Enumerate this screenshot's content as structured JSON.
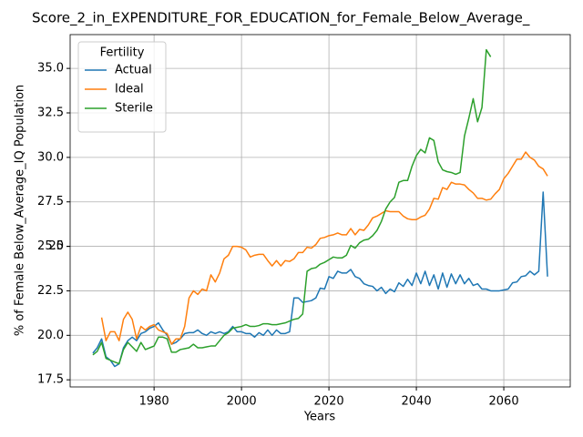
{
  "chart_data": {
    "type": "line",
    "title": "Score_2_in_EXPENDITURE_FOR_EDUCATION_for_Female_Below_Average_",
    "x_label": "Years",
    "y_label": "% of Female Below_Average_IQ Population",
    "legend_title": "Fertility",
    "legend_position": "upper-left",
    "grid": true,
    "x": [
      1966,
      1967,
      1968,
      1969,
      1970,
      1971,
      1972,
      1973,
      1974,
      1975,
      1976,
      1977,
      1978,
      1979,
      1980,
      1981,
      1982,
      1983,
      1984,
      1985,
      1986,
      1987,
      1988,
      1989,
      1990,
      1991,
      1992,
      1993,
      1994,
      1995,
      1996,
      1997,
      1998,
      1999,
      2000,
      2001,
      2002,
      2003,
      2004,
      2005,
      2006,
      2007,
      2008,
      2009,
      2010,
      2011,
      2012,
      2013,
      2014,
      2015,
      2016,
      2017,
      2018,
      2019,
      2020,
      2021,
      2022,
      2023,
      2024,
      2025,
      2026,
      2027,
      2028,
      2029,
      2030,
      2031,
      2032,
      2033,
      2034,
      2035,
      2036,
      2037,
      2038,
      2039,
      2040,
      2041,
      2042,
      2043,
      2044,
      2045,
      2046,
      2047,
      2048,
      2049,
      2050,
      2051,
      2052,
      2053,
      2054,
      2055,
      2056,
      2057,
      2058,
      2059,
      2060,
      2061,
      2062,
      2063,
      2064,
      2065,
      2066,
      2067,
      2068,
      2069,
      2070
    ],
    "series": [
      {
        "name": "Actual",
        "color": "#1f77b4",
        "values": [
          19.0,
          19.3,
          19.8,
          18.8,
          18.6,
          18.25,
          18.4,
          19.3,
          19.7,
          19.9,
          19.7,
          20.1,
          20.2,
          20.4,
          20.5,
          20.7,
          20.3,
          20.0,
          19.5,
          19.6,
          19.8,
          20.1,
          20.15,
          20.15,
          20.3,
          20.1,
          20.0,
          20.2,
          20.1,
          20.2,
          20.1,
          20.2,
          20.5,
          20.2,
          20.2,
          20.1,
          20.1,
          19.9,
          20.15,
          20.0,
          20.3,
          20.0,
          20.3,
          20.1,
          20.1,
          20.2,
          22.1,
          22.1,
          21.85,
          21.9,
          21.95,
          22.1,
          22.65,
          22.6,
          23.3,
          23.2,
          23.6,
          23.5,
          23.5,
          23.7,
          23.3,
          23.2,
          22.9,
          22.8,
          22.75,
          22.5,
          22.7,
          22.35,
          22.6,
          22.45,
          22.95,
          22.75,
          23.15,
          22.8,
          23.5,
          22.9,
          23.6,
          22.8,
          23.4,
          22.6,
          23.5,
          22.7,
          23.45,
          22.9,
          23.4,
          22.9,
          23.2,
          22.8,
          22.9,
          22.6,
          22.6,
          22.5,
          22.5,
          22.5,
          22.55,
          22.6,
          22.95,
          23.0,
          23.3,
          23.35,
          23.6,
          23.4,
          23.6,
          28.05,
          23.3
        ]
      },
      {
        "name": "Ideal",
        "color": "#ff7f0e",
        "values": [
          null,
          null,
          21.0,
          19.7,
          20.2,
          20.2,
          19.7,
          20.9,
          21.3,
          20.9,
          19.8,
          20.5,
          20.3,
          20.5,
          20.6,
          20.3,
          20.2,
          20.1,
          19.5,
          19.8,
          19.8,
          20.5,
          22.1,
          22.5,
          22.3,
          22.6,
          22.5,
          23.4,
          23.0,
          23.5,
          24.3,
          24.5,
          25.0,
          25.0,
          24.95,
          24.8,
          24.4,
          24.5,
          24.55,
          24.55,
          24.2,
          23.9,
          24.2,
          23.9,
          24.2,
          24.15,
          24.3,
          24.65,
          24.65,
          24.95,
          24.9,
          25.1,
          25.45,
          25.5,
          25.6,
          25.65,
          25.75,
          25.65,
          25.65,
          26.0,
          25.65,
          25.95,
          25.9,
          26.2,
          26.6,
          26.7,
          26.85,
          27.0,
          26.95,
          26.95,
          26.95,
          26.7,
          26.55,
          26.5,
          26.5,
          26.65,
          26.75,
          27.1,
          27.7,
          27.65,
          28.3,
          28.2,
          28.6,
          28.5,
          28.5,
          28.45,
          28.2,
          28.0,
          27.7,
          27.7,
          27.6,
          27.65,
          27.95,
          28.2,
          28.8,
          29.1,
          29.5,
          29.9,
          29.9,
          30.3,
          30.0,
          29.85,
          29.5,
          29.35,
          28.95
        ]
      },
      {
        "name": "Sterile",
        "color": "#2ca02c",
        "values": [
          18.9,
          19.1,
          19.6,
          18.7,
          18.6,
          18.5,
          18.4,
          19.2,
          19.6,
          19.35,
          19.1,
          19.6,
          19.2,
          19.3,
          19.4,
          19.9,
          19.9,
          19.8,
          19.05,
          19.05,
          19.2,
          19.25,
          19.3,
          19.5,
          19.3,
          19.3,
          19.35,
          19.4,
          19.4,
          19.7,
          20.0,
          20.15,
          20.4,
          20.45,
          20.5,
          20.6,
          20.5,
          20.5,
          20.55,
          20.65,
          20.65,
          20.6,
          20.6,
          20.65,
          20.7,
          20.8,
          20.9,
          20.95,
          21.2,
          23.6,
          23.75,
          23.8,
          24.0,
          24.1,
          24.25,
          24.4,
          24.35,
          24.35,
          24.5,
          25.05,
          24.9,
          25.2,
          25.35,
          25.4,
          25.6,
          25.9,
          26.4,
          27.1,
          27.5,
          27.75,
          28.6,
          28.7,
          28.7,
          29.5,
          30.1,
          30.45,
          30.25,
          31.1,
          30.95,
          29.75,
          29.3,
          29.2,
          29.15,
          29.05,
          29.15,
          31.2,
          32.2,
          33.3,
          32.0,
          32.8,
          36.05,
          35.65,
          null,
          null,
          null,
          null,
          null,
          null,
          null,
          null,
          null,
          null,
          null,
          null,
          null
        ]
      }
    ],
    "xlim": [
      1960.8,
      2075.2
    ],
    "ylim": [
      17.1,
      36.9
    ],
    "xticks": [
      1980,
      2000,
      2020,
      2040,
      2060
    ],
    "yticks": [
      17.5,
      {
        "value": 20,
        "label": "20.0"
      },
      22.5,
      25,
      {
        "value": 25,
        "label": "25.0"
      },
      27.5,
      {
        "value": 30,
        "label": "30.0"
      },
      32.5,
      {
        "value": 35,
        "label": "35.0"
      }
    ]
  }
}
